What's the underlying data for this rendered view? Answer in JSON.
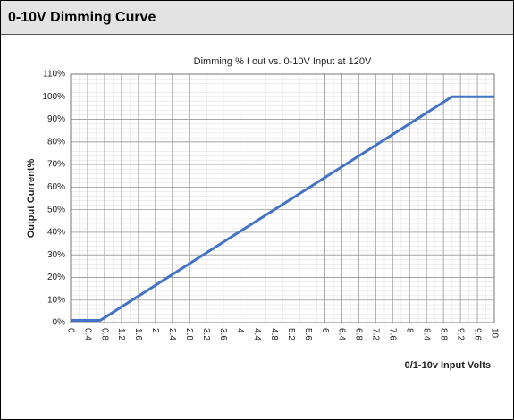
{
  "header": {
    "title": "0-10V Dimming Curve"
  },
  "chart_data": {
    "type": "line",
    "title": "Dimming % I out vs. 0-10V Input at 120V",
    "ylabel": "Output Current%",
    "xlabel": "0/1-10v Input Volts",
    "x": [
      0,
      0.7,
      9,
      10
    ],
    "values": [
      1,
      1,
      100,
      100
    ],
    "color": "#4472c4",
    "xlim": [
      0,
      10
    ],
    "xticks": [
      0,
      0.4,
      0.8,
      1.2,
      1.6,
      2,
      2.4,
      2.8,
      3.2,
      3.6,
      4,
      4.4,
      4.8,
      5.2,
      5.6,
      6,
      6.4,
      6.8,
      7.2,
      7.6,
      8,
      8.4,
      8.8,
      9.2,
      9.6,
      10
    ],
    "ylim": [
      0,
      110
    ],
    "yticks": [
      {
        "value": 0,
        "label": "0%"
      },
      {
        "value": 10,
        "label": "10%"
      },
      {
        "value": 20,
        "label": "20%"
      },
      {
        "value": 30,
        "label": "30%"
      },
      {
        "value": 40,
        "label": "40%"
      },
      {
        "value": 50,
        "label": "50%"
      },
      {
        "value": 60,
        "label": "60%"
      },
      {
        "value": 70,
        "label": "70%"
      },
      {
        "value": 80,
        "label": "80%"
      },
      {
        "value": 90,
        "label": "90%"
      },
      {
        "value": 100,
        "label": "100%"
      },
      {
        "value": 110,
        "label": "110%"
      }
    ],
    "grid": true
  }
}
